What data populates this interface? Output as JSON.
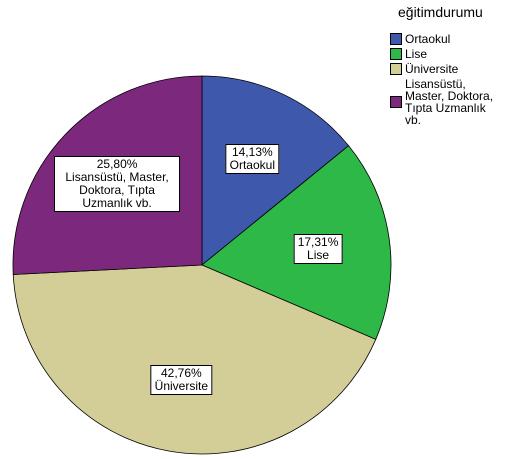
{
  "chart_data": {
    "type": "pie",
    "legend_title": "eğitimdurumu",
    "legend_position": "right",
    "categories": [
      "Ortaokul",
      "Lise",
      "Üniversite",
      "Lisansüstü, Master, Doktora, Tıpta Uzmanlık vb."
    ],
    "values": [
      14.13,
      17.31,
      42.76,
      25.8
    ],
    "value_labels": [
      "14,13%",
      "17,31%",
      "42,76%",
      "25,80%"
    ],
    "colors": [
      "#3e58ac",
      "#2eb848",
      "#d3ce97",
      "#7c287d"
    ]
  }
}
